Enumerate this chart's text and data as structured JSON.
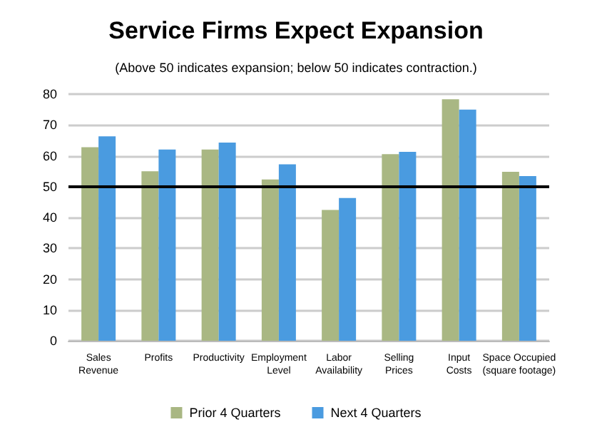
{
  "chart_data": {
    "type": "bar",
    "title": "Service Firms Expect Expansion",
    "subtitle": "(Above 50 indicates expansion; below 50 indicates contraction.)",
    "categories": [
      "Sales\nRevenue",
      "Profits",
      "Productivity",
      "Employment\nLevel",
      "Labor\nAvailability",
      "Selling\nPrices",
      "Input\nCosts",
      "Space Occupied\n(square footage)"
    ],
    "series": [
      {
        "name": "Prior 4 Quarters",
        "color": "#a9b783",
        "values": [
          62.8,
          55,
          62,
          52.3,
          42.4,
          60.5,
          78.3,
          54.8
        ]
      },
      {
        "name": "Next 4 Quarters",
        "color": "#4a9be0",
        "values": [
          66.3,
          62,
          64.3,
          57.2,
          46.3,
          61.3,
          75,
          53.4
        ]
      }
    ],
    "ylim": [
      0,
      80
    ],
    "yticks": [
      0,
      10,
      20,
      30,
      40,
      50,
      60,
      70,
      80
    ],
    "grid": "y",
    "legend": "bottom",
    "ref_lines": [
      {
        "axis": "y",
        "value": 50,
        "color": "#000000"
      }
    ]
  }
}
